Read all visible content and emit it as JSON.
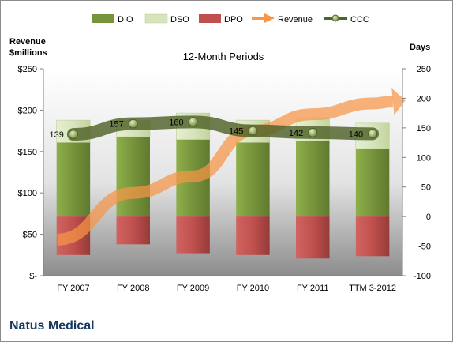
{
  "chart_data": {
    "type": "bar",
    "title": "12-Month Periods",
    "company": "Natus Medical",
    "left_axis_label_line1": "Revenue",
    "left_axis_label_line2": "$millions",
    "right_axis_label": "Days",
    "categories": [
      "FY 2007",
      "FY 2008",
      "FY 2009",
      "FY 2010",
      "FY 2011",
      "TTM 3-2012"
    ],
    "left_ticks": [
      "$-",
      "$50",
      "$100",
      "$150",
      "$200",
      "$250"
    ],
    "right_ticks": [
      "-100",
      "-50",
      "0",
      "50",
      "100",
      "150",
      "200",
      "250"
    ],
    "ylim_days": [
      -100,
      250
    ],
    "ylim_revenue": [
      0,
      250
    ],
    "series": [
      {
        "name": "DIO",
        "type": "stacked-bar",
        "values": [
          125,
          135,
          130,
          125,
          128,
          115
        ],
        "color": "#77933c"
      },
      {
        "name": "DSO",
        "type": "stacked-bar",
        "values": [
          38,
          27,
          45,
          38,
          39,
          43
        ],
        "color": "#d7e4bd"
      },
      {
        "name": "DPO",
        "type": "negative-bar",
        "values": [
          -65,
          -47,
          -62,
          -65,
          -71,
          -67
        ],
        "color": "#c0504d"
      },
      {
        "name": "Revenue",
        "type": "arrow-line",
        "values": [
          57,
          100,
          120,
          175,
          195,
          208
        ],
        "axis": "left",
        "color": "#f79646"
      },
      {
        "name": "CCC",
        "type": "line",
        "values": [
          139,
          157,
          160,
          145,
          142,
          140
        ],
        "data_labels": [
          "139",
          "157",
          "160",
          "145",
          "142",
          "140"
        ],
        "color": "#4f6228"
      }
    ],
    "grid": false,
    "legend_position": "top"
  }
}
